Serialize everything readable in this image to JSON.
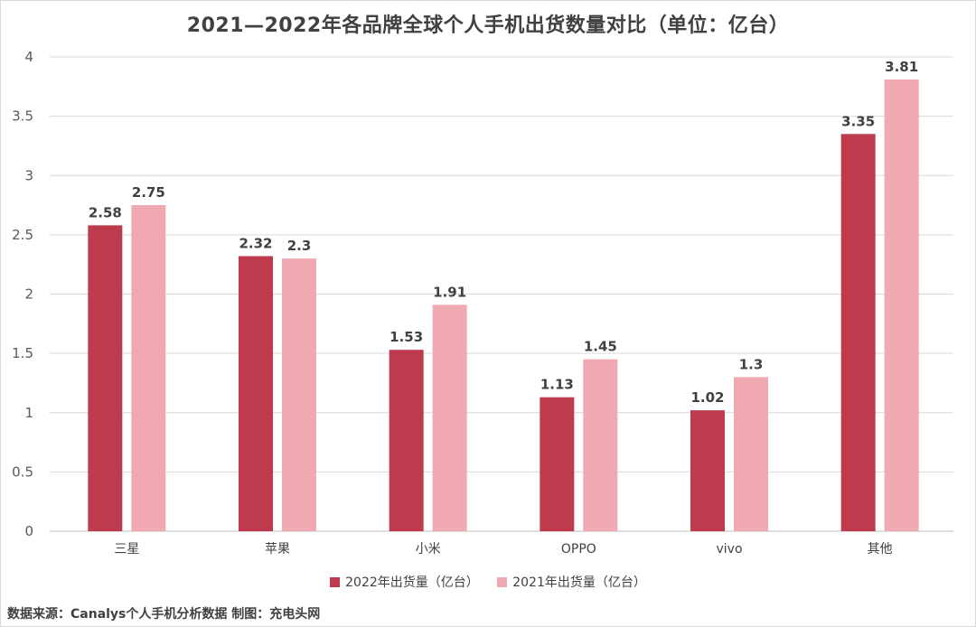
{
  "chart_data": {
    "type": "bar",
    "title": "2021—2022年各品牌全球个人手机出货数量对比（单位：亿台）",
    "categories": [
      "三星",
      "苹果",
      "小米",
      "OPPO",
      "vivo",
      "其他"
    ],
    "series": [
      {
        "name": "2022年出货量（亿台）",
        "color": "#be3a4d",
        "values": [
          2.58,
          2.32,
          1.53,
          1.13,
          1.02,
          3.35
        ],
        "labels": [
          "2.58",
          "2.32",
          "1.53",
          "1.13",
          "1.02",
          "3.35"
        ]
      },
      {
        "name": "2021年出货量（亿台）",
        "color": "#f0a9b0",
        "values": [
          2.75,
          2.3,
          1.91,
          1.45,
          1.3,
          3.81
        ],
        "labels": [
          "2.75",
          "2.3",
          "1.91",
          "1.45",
          "1.3",
          "3.81"
        ]
      }
    ],
    "ylim": [
      0,
      4
    ],
    "yticks": [
      "0",
      "0.5",
      "1",
      "1.5",
      "2",
      "2.5",
      "3",
      "3.5",
      "4"
    ],
    "grid": true,
    "legend": "bottom"
  },
  "source_text": "数据来源：Canalys个人手机分析数据  制图：充电头网"
}
